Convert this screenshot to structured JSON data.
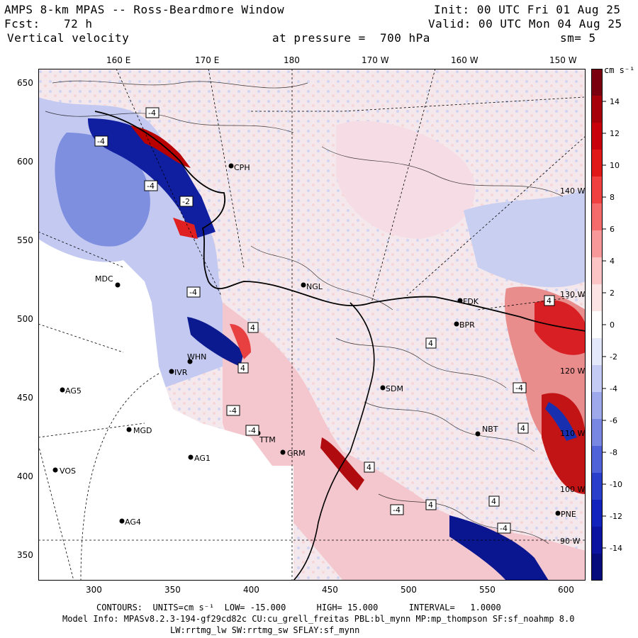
{
  "header": {
    "title": "AMPS 8-km MPAS -- Ross-Beardmore Window",
    "init": "Init: 00 UTC Fri 01 Aug 25",
    "fcst_label": "Fcst:",
    "fcst_value": "72 h",
    "valid": "Valid: 00 UTC Mon 04 Aug 25",
    "variable": "Vertical velocity",
    "pressure": "at pressure =  700 hPa",
    "smoothing": "sm= 5"
  },
  "map": {
    "top_lon_labels": [
      "160 E",
      "170 E",
      "180",
      "170 W",
      "160 W",
      "150 W"
    ],
    "right_lon_labels": [
      "140 W",
      "130 W",
      "120 W",
      "110 W",
      "100 W",
      "90 W"
    ],
    "y_ticks": [
      "650",
      "600",
      "550",
      "500",
      "450",
      "400",
      "350"
    ],
    "x_ticks": [
      "300",
      "350",
      "400",
      "450",
      "500",
      "550",
      "600"
    ],
    "stations": [
      {
        "name": "MDC"
      },
      {
        "name": "CPH"
      },
      {
        "name": "NGL"
      },
      {
        "name": "FDK"
      },
      {
        "name": "BPR"
      },
      {
        "name": "WHN"
      },
      {
        "name": "IVR"
      },
      {
        "name": "AG5"
      },
      {
        "name": "SDM"
      },
      {
        "name": "MGD"
      },
      {
        "name": "TTM"
      },
      {
        "name": "GRM"
      },
      {
        "name": "AG1"
      },
      {
        "name": "VOS"
      },
      {
        "name": "AG4"
      },
      {
        "name": "PNE"
      },
      {
        "name": "NBT"
      }
    ],
    "contour_labels": [
      "-4",
      "-4",
      "-4",
      "-2",
      "-4",
      "4",
      "4",
      "-4",
      "-4",
      "4",
      "-4",
      "4",
      "4",
      "-4",
      "4",
      "4",
      "-4",
      "4"
    ]
  },
  "colorbar": {
    "units": "cm s⁻¹",
    "labels": [
      "14",
      "12",
      "10",
      "8",
      "6",
      "4",
      "2",
      "0",
      "-2",
      "-4",
      "-6",
      "-8",
      "-10",
      "-12",
      "-14"
    ],
    "colors": [
      "#7a0010",
      "#a8000a",
      "#c8000c",
      "#e01818",
      "#f04040",
      "#f56a6a",
      "#f99898",
      "#fcc4c4",
      "#fde4e4",
      "#ffffff",
      "#e4e8fb",
      "#c4ccf5",
      "#9ea9ec",
      "#7787e2",
      "#5062d8",
      "#2a3ecc",
      "#1222bc",
      "#0a14a0",
      "#060c7c"
    ]
  },
  "footer": {
    "contours": "CONTOURS:  UNITS=cm s⁻¹  LOW= -15.000      HIGH= 15.000      INTERVAL=   1.0000",
    "model_info": "Model Info: MPASv8.2.3-194-gf29cd82c CU:cu_grell_freitas PBL:bl_mynn MP:mp_thompson SF:sf_noahmp 8.0",
    "model_info2": "LW:rrtmg_lw SW:rrtmg_sw SFLAY:sf_mynn"
  }
}
